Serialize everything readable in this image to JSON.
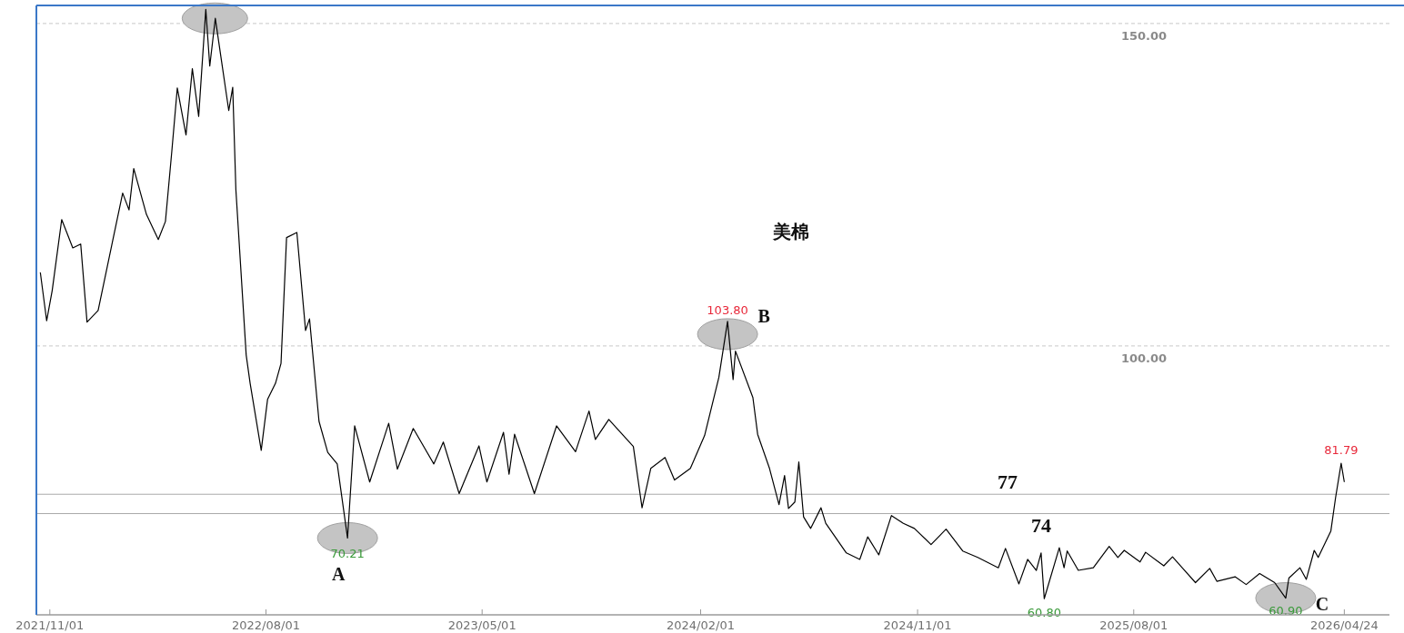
{
  "chart_data": {
    "type": "line",
    "title": "美棉",
    "xlim": [
      "2021-10-15",
      "2026-06-20"
    ],
    "ylim": [
      58.3,
      152.8
    ],
    "xticks": [
      {
        "value": "2021-11-01",
        "label": "2021/11/01"
      },
      {
        "value": "2022-08-01",
        "label": "2022/08/01"
      },
      {
        "value": "2023-05-01",
        "label": "2023/05/01"
      },
      {
        "value": "2024-02-01",
        "label": "2024/02/01"
      },
      {
        "value": "2024-11-01",
        "label": "2024/11/01"
      },
      {
        "value": "2025-08-01",
        "label": "2025/08/01"
      },
      {
        "value": "2026-04-24",
        "label": "2026/04/24"
      }
    ],
    "yticks": [
      {
        "value": 100,
        "label": "100.00"
      },
      {
        "value": 150,
        "label": "150.00"
      }
    ],
    "grid": "y",
    "x": [
      "2021-10-20",
      "2021-10-28",
      "2021-11-04",
      "2021-11-16",
      "2021-11-30",
      "2021-12-10",
      "2021-12-18",
      "2022-01-01",
      "2022-01-19",
      "2022-02-01",
      "2022-02-09",
      "2022-02-15",
      "2022-03-03",
      "2022-03-18",
      "2022-03-27",
      "2022-04-04",
      "2022-04-11",
      "2022-04-22",
      "2022-04-30",
      "2022-05-08",
      "2022-05-17",
      "2022-05-22",
      "2022-05-29",
      "2022-06-05",
      "2022-06-15",
      "2022-06-20",
      "2022-06-24",
      "2022-07-07",
      "2022-07-12",
      "2022-07-26",
      "2022-08-03",
      "2022-08-13",
      "2022-08-20",
      "2022-08-27",
      "2022-09-09",
      "2022-09-20",
      "2022-09-25",
      "2022-10-07",
      "2022-10-18",
      "2022-10-30",
      "2022-11-12",
      "2022-11-21",
      "2022-12-10",
      "2023-01-03",
      "2023-01-14",
      "2023-02-03",
      "2023-03-01",
      "2023-03-13",
      "2023-04-02",
      "2023-04-27",
      "2023-05-07",
      "2023-05-28",
      "2023-06-04",
      "2023-06-11",
      "2023-07-06",
      "2023-08-03",
      "2023-08-27",
      "2023-09-13",
      "2023-09-21",
      "2023-10-08",
      "2023-11-08",
      "2023-11-19",
      "2023-11-30",
      "2023-12-18",
      "2023-12-30",
      "2024-01-19",
      "2024-02-06",
      "2024-02-24",
      "2024-03-06",
      "2024-03-13",
      "2024-03-16",
      "2024-04-07",
      "2024-04-13",
      "2024-04-28",
      "2024-05-10",
      "2024-05-17",
      "2024-05-22",
      "2024-05-30",
      "2024-06-04",
      "2024-06-10",
      "2024-06-19",
      "2024-07-02",
      "2024-07-08",
      "2024-08-03",
      "2024-08-20",
      "2024-08-30",
      "2024-09-13",
      "2024-09-29",
      "2024-10-14",
      "2024-10-28",
      "2024-11-18",
      "2024-12-07",
      "2024-12-28",
      "2025-01-16",
      "2025-02-11",
      "2025-02-20",
      "2025-03-09",
      "2025-03-20",
      "2025-03-31",
      "2025-04-06",
      "2025-04-10",
      "2025-04-29",
      "2025-05-05",
      "2025-05-09",
      "2025-05-23",
      "2025-06-11",
      "2025-07-01",
      "2025-07-12",
      "2025-07-20",
      "2025-08-09",
      "2025-08-16",
      "2025-09-08",
      "2025-09-19",
      "2025-10-02",
      "2025-10-18",
      "2025-11-05",
      "2025-11-14",
      "2025-12-07",
      "2025-12-21",
      "2026-01-07",
      "2026-01-26",
      "2026-02-09",
      "2026-02-13",
      "2026-02-27",
      "2026-03-07",
      "2026-03-17",
      "2026-03-22",
      "2026-04-07",
      "2026-04-13",
      "2026-04-20",
      "2026-04-24"
    ],
    "series": [
      {
        "color": "#000000",
        "values": [
          111.4,
          103.9,
          108.6,
          119.6,
          115.2,
          115.8,
          103.7,
          105.5,
          116.1,
          123.7,
          121.1,
          127.5,
          120.4,
          116.5,
          119.3,
          130.1,
          140.0,
          132.7,
          143.0,
          135.6,
          152.2,
          143.4,
          150.8,
          144.9,
          136.5,
          140.1,
          124.2,
          98.6,
          94.2,
          83.8,
          91.7,
          94.2,
          97.3,
          116.8,
          117.6,
          102.4,
          104.2,
          88.3,
          83.5,
          81.7,
          70.21,
          87.6,
          78.9,
          88.0,
          80.9,
          87.2,
          81.7,
          85.1,
          77.1,
          84.5,
          78.9,
          86.6,
          80.1,
          86.3,
          77.1,
          87.6,
          83.6,
          89.9,
          85.5,
          88.6,
          84.4,
          74.9,
          81.0,
          82.7,
          79.2,
          81.0,
          86.1,
          95.1,
          103.8,
          94.8,
          99.2,
          92.0,
          86.3,
          81.0,
          75.4,
          79.9,
          74.8,
          75.8,
          82.0,
          73.5,
          71.7,
          74.9,
          72.5,
          67.9,
          66.9,
          70.4,
          67.6,
          73.7,
          72.5,
          71.7,
          69.2,
          71.6,
          68.2,
          67.2,
          65.6,
          68.6,
          63.1,
          66.9,
          65.2,
          67.9,
          60.8,
          68.7,
          65.6,
          68.2,
          65.2,
          65.6,
          68.9,
          67.2,
          68.3,
          66.5,
          68.0,
          65.9,
          67.3,
          65.5,
          63.3,
          65.5,
          63.5,
          64.2,
          63.0,
          64.7,
          63.3,
          60.9,
          64.0,
          65.6,
          63.8,
          68.3,
          67.2,
          71.3,
          76.5,
          81.79,
          78.9
        ]
      }
    ],
    "ref_lines": [
      {
        "axis": "y",
        "value": 77,
        "label": "77",
        "color": "#aaaaaa"
      },
      {
        "axis": "y",
        "value": 74,
        "label": "74",
        "color": "#aaaaaa"
      }
    ],
    "annotations": [
      {
        "text": "103.80",
        "x": "2024-03-06",
        "y": 103.8
      },
      {
        "text": "B",
        "x": "2024-03-06",
        "y": 103.8
      },
      {
        "text": "70.21",
        "x": "2022-11-12",
        "y": 70.21
      },
      {
        "text": "A",
        "x": "2022-11-12",
        "y": 70.21
      },
      {
        "text": "60.90",
        "x": "2026-02-09",
        "y": 60.9
      },
      {
        "text": "C",
        "x": "2026-02-09",
        "y": 60.9
      },
      {
        "text": "81.79",
        "x": "2026-04-20",
        "y": 81.79
      },
      {
        "text": "60.80",
        "x": "2025-04-10",
        "y": 60.8
      }
    ]
  }
}
